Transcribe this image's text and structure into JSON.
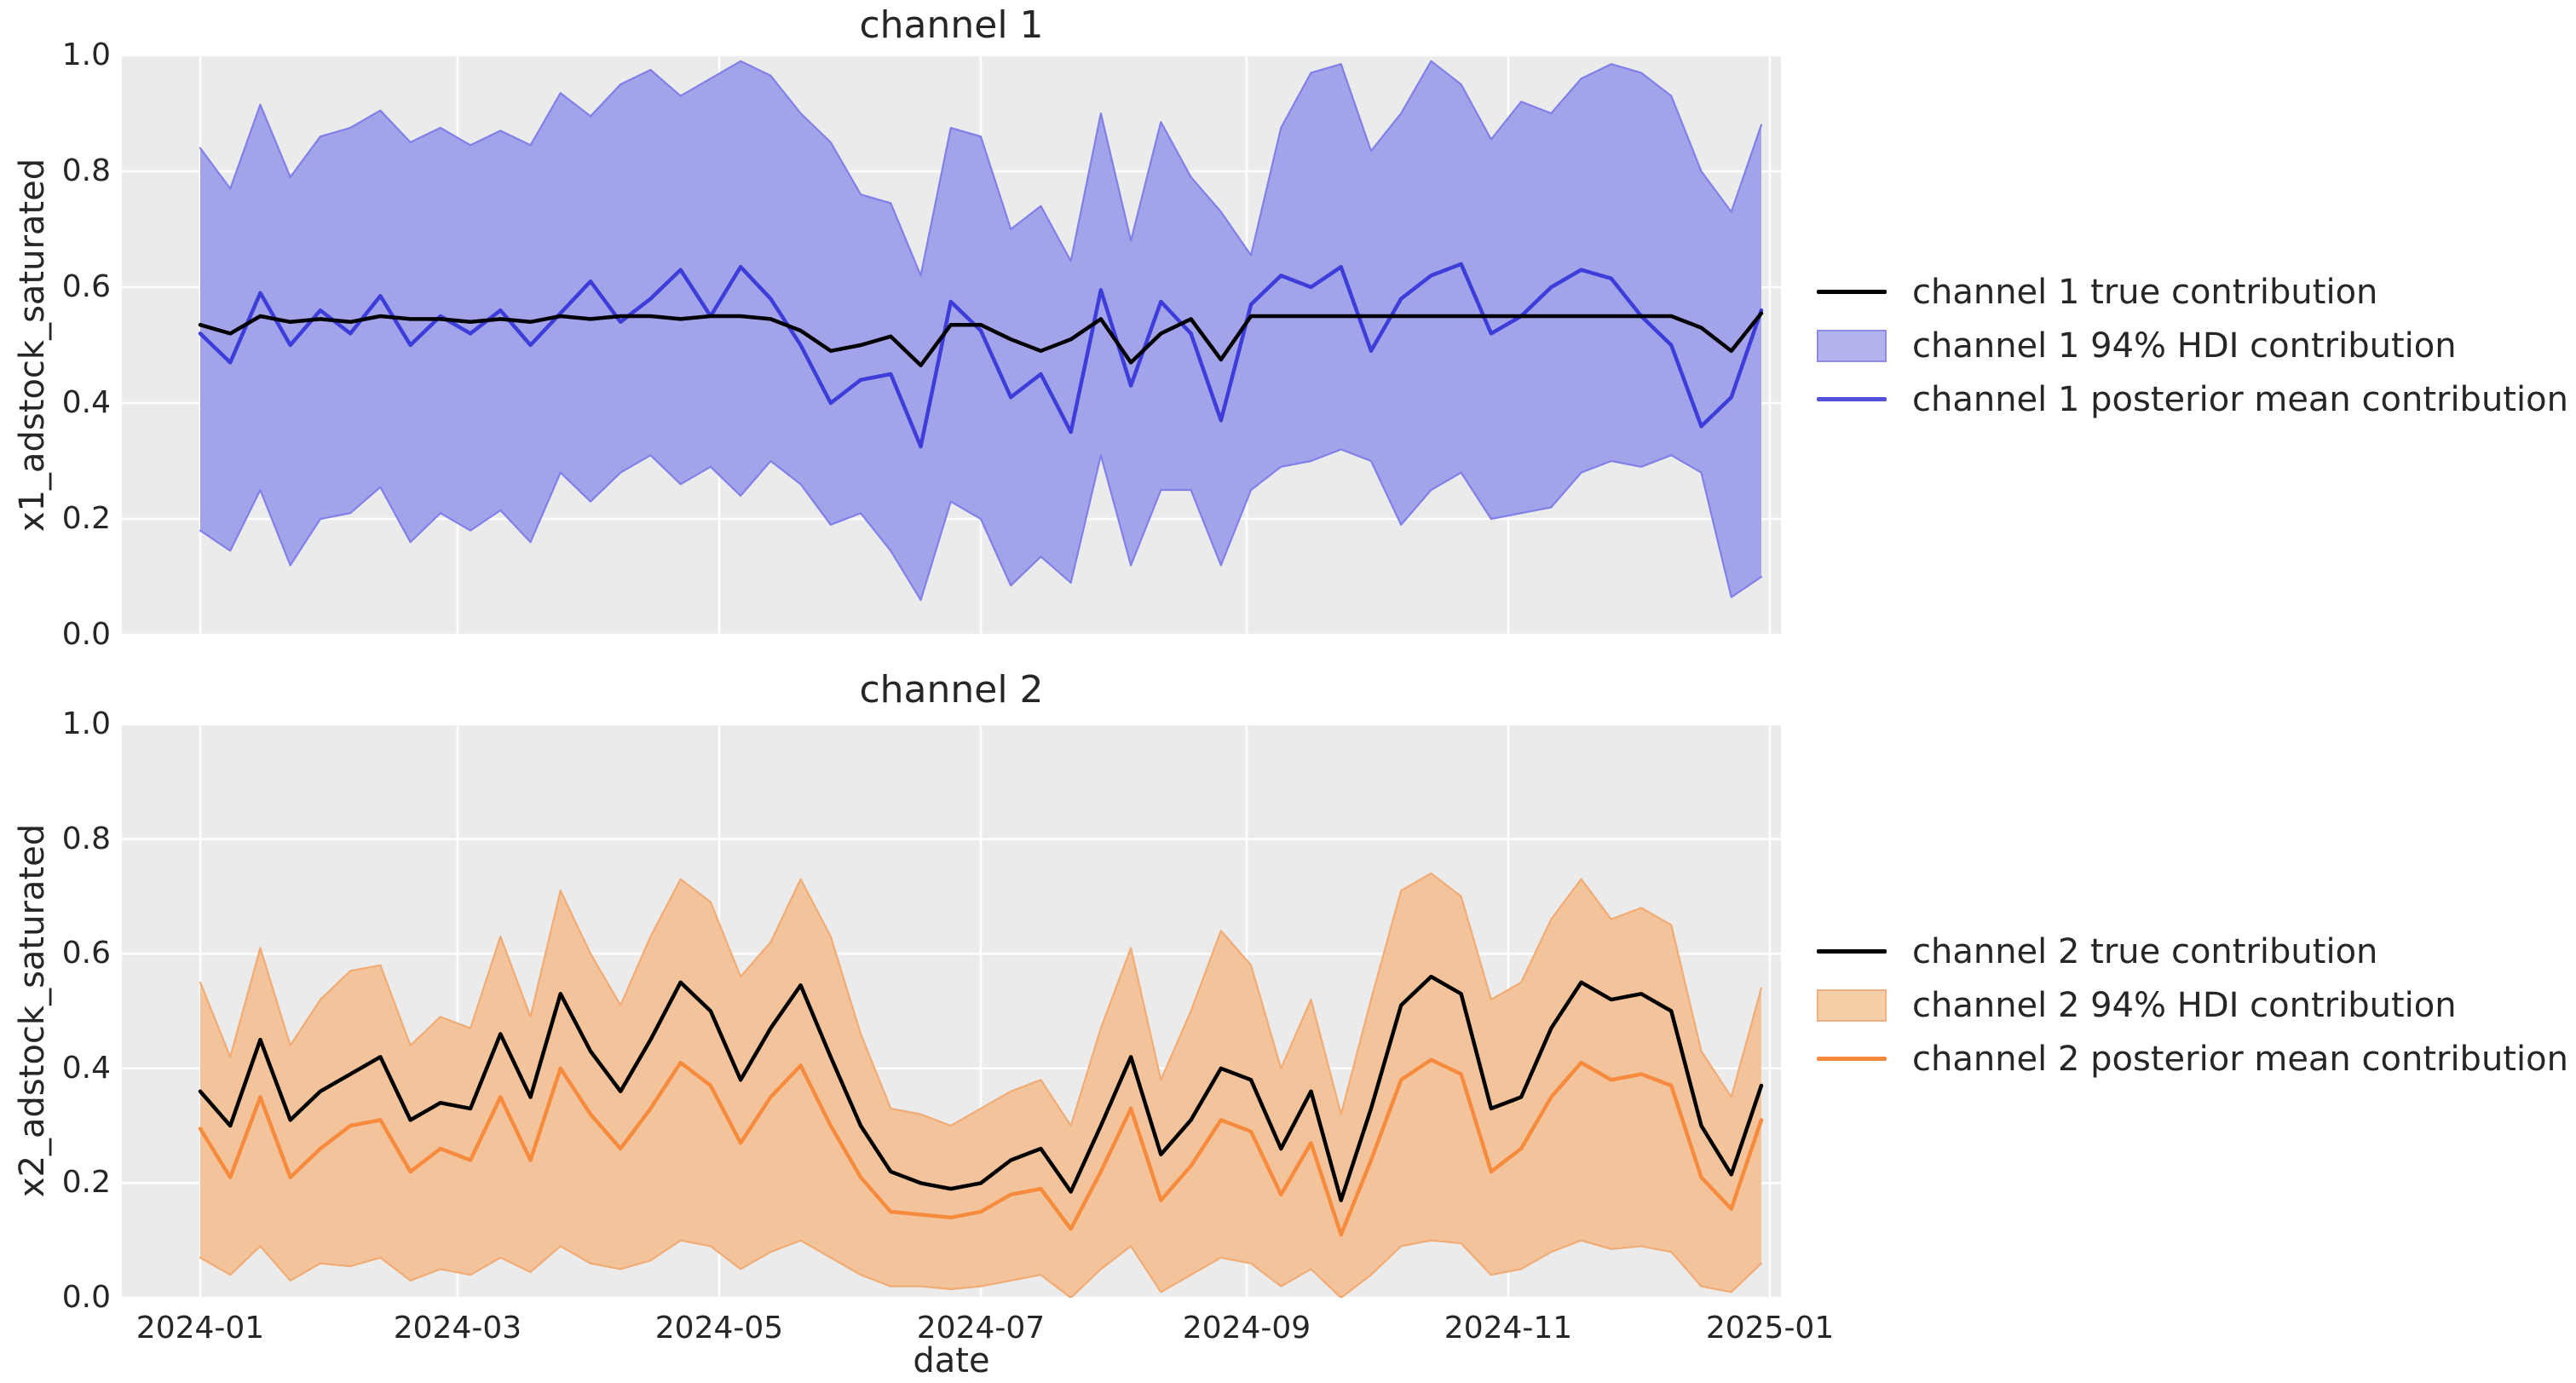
{
  "figure": {
    "background": "#ffffff",
    "axes_background": "#ebebeb",
    "grid_color": "#ffffff",
    "text_color": "#262626"
  },
  "chart_data": [
    {
      "type": "line",
      "title": "channel 1",
      "ylabel": "x1_adstock_saturated",
      "xlabel": "",
      "ylim": [
        0.0,
        1.0
      ],
      "y_ticks": [
        0.0,
        0.2,
        0.4,
        0.6,
        0.8,
        1.0
      ],
      "x_ticks": [
        {
          "label": "2024-01",
          "week": 0
        },
        {
          "label": "2024-03",
          "week": 8.571
        },
        {
          "label": "2024-05",
          "week": 17.286
        },
        {
          "label": "2024-07",
          "week": 26.0
        },
        {
          "label": "2024-09",
          "week": 34.857
        },
        {
          "label": "2024-11",
          "week": 43.571
        },
        {
          "label": "2025-01",
          "week": 52.286
        }
      ],
      "show_x_tick_labels": false,
      "grid": true,
      "legend_position": "center-right-outside",
      "x": [
        "2024-01-01",
        "2024-01-08",
        "2024-01-15",
        "2024-01-22",
        "2024-01-29",
        "2024-02-05",
        "2024-02-12",
        "2024-02-19",
        "2024-02-26",
        "2024-03-04",
        "2024-03-11",
        "2024-03-18",
        "2024-03-25",
        "2024-04-01",
        "2024-04-08",
        "2024-04-15",
        "2024-04-22",
        "2024-04-29",
        "2024-05-06",
        "2024-05-13",
        "2024-05-20",
        "2024-05-27",
        "2024-06-03",
        "2024-06-10",
        "2024-06-17",
        "2024-06-24",
        "2024-07-01",
        "2024-07-08",
        "2024-07-15",
        "2024-07-22",
        "2024-07-29",
        "2024-08-05",
        "2024-08-12",
        "2024-08-19",
        "2024-08-26",
        "2024-09-02",
        "2024-09-09",
        "2024-09-16",
        "2024-09-23",
        "2024-09-30",
        "2024-10-07",
        "2024-10-14",
        "2024-10-21",
        "2024-10-28",
        "2024-11-04",
        "2024-11-11",
        "2024-11-18",
        "2024-11-25",
        "2024-12-02",
        "2024-12-09",
        "2024-12-16",
        "2024-12-23",
        "2024-12-30"
      ],
      "series": [
        {
          "name": "channel 1 true contribution",
          "role": "true",
          "color": "#000000",
          "values": [
            0.535,
            0.52,
            0.55,
            0.54,
            0.545,
            0.54,
            0.55,
            0.545,
            0.545,
            0.54,
            0.545,
            0.54,
            0.55,
            0.545,
            0.55,
            0.55,
            0.545,
            0.55,
            0.55,
            0.545,
            0.525,
            0.49,
            0.5,
            0.515,
            0.465,
            0.535,
            0.535,
            0.51,
            0.49,
            0.51,
            0.545,
            0.47,
            0.52,
            0.545,
            0.475,
            0.55,
            0.55,
            0.55,
            0.55,
            0.55,
            0.55,
            0.55,
            0.55,
            0.55,
            0.55,
            0.55,
            0.55,
            0.55,
            0.55,
            0.55,
            0.53,
            0.49,
            0.555
          ]
        },
        {
          "name": "channel 1 posterior mean contribution",
          "role": "posterior_mean",
          "color": "#3d3dd9",
          "values": [
            0.52,
            0.47,
            0.59,
            0.5,
            0.56,
            0.52,
            0.585,
            0.5,
            0.55,
            0.52,
            0.56,
            0.5,
            0.555,
            0.61,
            0.54,
            0.58,
            0.63,
            0.55,
            0.635,
            0.58,
            0.5,
            0.4,
            0.44,
            0.45,
            0.325,
            0.575,
            0.525,
            0.41,
            0.45,
            0.35,
            0.595,
            0.43,
            0.575,
            0.52,
            0.37,
            0.57,
            0.62,
            0.6,
            0.635,
            0.49,
            0.58,
            0.62,
            0.64,
            0.52,
            0.55,
            0.6,
            0.63,
            0.615,
            0.55,
            0.5,
            0.36,
            0.41,
            0.56
          ]
        }
      ],
      "band": {
        "name": "channel 1 94% HDI contribution",
        "fill": "#a3a3e9",
        "edge": "#8080e8",
        "legend_fill": "#b3b3ef",
        "legend_edge": "#8c8ce8",
        "upper": [
          0.84,
          0.77,
          0.915,
          0.79,
          0.86,
          0.875,
          0.905,
          0.85,
          0.875,
          0.845,
          0.87,
          0.845,
          0.935,
          0.895,
          0.95,
          0.975,
          0.93,
          0.96,
          0.99,
          0.965,
          0.9,
          0.85,
          0.76,
          0.745,
          0.62,
          0.875,
          0.86,
          0.7,
          0.74,
          0.645,
          0.9,
          0.68,
          0.885,
          0.79,
          0.73,
          0.655,
          0.875,
          0.97,
          0.985,
          0.835,
          0.9,
          0.99,
          0.95,
          0.855,
          0.92,
          0.9,
          0.96,
          0.985,
          0.97,
          0.93,
          0.8,
          0.73,
          0.88
        ],
        "lower": [
          0.18,
          0.145,
          0.25,
          0.12,
          0.2,
          0.21,
          0.255,
          0.16,
          0.21,
          0.18,
          0.215,
          0.16,
          0.28,
          0.23,
          0.28,
          0.31,
          0.26,
          0.29,
          0.24,
          0.3,
          0.26,
          0.19,
          0.21,
          0.145,
          0.06,
          0.23,
          0.2,
          0.085,
          0.135,
          0.09,
          0.31,
          0.12,
          0.25,
          0.25,
          0.12,
          0.25,
          0.29,
          0.3,
          0.32,
          0.3,
          0.19,
          0.25,
          0.28,
          0.2,
          0.21,
          0.22,
          0.28,
          0.3,
          0.29,
          0.31,
          0.28,
          0.065,
          0.1
        ]
      },
      "legend": [
        {
          "label": "channel 1 true contribution",
          "swatch": "line",
          "color": "#000000"
        },
        {
          "label": "channel 1 94% HDI contribution",
          "swatch": "patch",
          "color": "#b3b3ef",
          "edge": "#8c8ce8"
        },
        {
          "label": "channel 1 posterior mean contribution",
          "swatch": "line",
          "color": "#5151dd"
        }
      ]
    },
    {
      "type": "line",
      "title": "channel 2",
      "ylabel": "x2_adstock_saturated",
      "xlabel": "date",
      "ylim": [
        0.0,
        1.0
      ],
      "y_ticks": [
        0.0,
        0.2,
        0.4,
        0.6,
        0.8,
        1.0
      ],
      "x_ticks": [
        {
          "label": "2024-01",
          "week": 0
        },
        {
          "label": "2024-03",
          "week": 8.571
        },
        {
          "label": "2024-05",
          "week": 17.286
        },
        {
          "label": "2024-07",
          "week": 26.0
        },
        {
          "label": "2024-09",
          "week": 34.857
        },
        {
          "label": "2024-11",
          "week": 43.571
        },
        {
          "label": "2025-01",
          "week": 52.286
        }
      ],
      "show_x_tick_labels": true,
      "grid": true,
      "legend_position": "center-right-outside",
      "x": [
        "2024-01-01",
        "2024-01-08",
        "2024-01-15",
        "2024-01-22",
        "2024-01-29",
        "2024-02-05",
        "2024-02-12",
        "2024-02-19",
        "2024-02-26",
        "2024-03-04",
        "2024-03-11",
        "2024-03-18",
        "2024-03-25",
        "2024-04-01",
        "2024-04-08",
        "2024-04-15",
        "2024-04-22",
        "2024-04-29",
        "2024-05-06",
        "2024-05-13",
        "2024-05-20",
        "2024-05-27",
        "2024-06-03",
        "2024-06-10",
        "2024-06-17",
        "2024-06-24",
        "2024-07-01",
        "2024-07-08",
        "2024-07-15",
        "2024-07-22",
        "2024-07-29",
        "2024-08-05",
        "2024-08-12",
        "2024-08-19",
        "2024-08-26",
        "2024-09-02",
        "2024-09-09",
        "2024-09-16",
        "2024-09-23",
        "2024-09-30",
        "2024-10-07",
        "2024-10-14",
        "2024-10-21",
        "2024-10-28",
        "2024-11-04",
        "2024-11-11",
        "2024-11-18",
        "2024-11-25",
        "2024-12-02",
        "2024-12-09",
        "2024-12-16",
        "2024-12-23",
        "2024-12-30"
      ],
      "series": [
        {
          "name": "channel 2 true contribution",
          "role": "true",
          "color": "#000000",
          "values": [
            0.36,
            0.3,
            0.45,
            0.31,
            0.36,
            0.39,
            0.42,
            0.31,
            0.34,
            0.33,
            0.46,
            0.35,
            0.53,
            0.43,
            0.36,
            0.45,
            0.55,
            0.5,
            0.38,
            0.47,
            0.545,
            0.42,
            0.3,
            0.22,
            0.2,
            0.19,
            0.2,
            0.24,
            0.26,
            0.185,
            0.3,
            0.42,
            0.25,
            0.31,
            0.4,
            0.38,
            0.26,
            0.36,
            0.17,
            0.33,
            0.51,
            0.56,
            0.53,
            0.33,
            0.35,
            0.47,
            0.55,
            0.52,
            0.53,
            0.5,
            0.3,
            0.215,
            0.37
          ]
        },
        {
          "name": "channel 2 posterior mean contribution",
          "role": "posterior_mean",
          "color": "#f78b3d",
          "values": [
            0.295,
            0.21,
            0.35,
            0.21,
            0.26,
            0.3,
            0.31,
            0.22,
            0.26,
            0.24,
            0.35,
            0.24,
            0.4,
            0.32,
            0.26,
            0.33,
            0.41,
            0.37,
            0.27,
            0.35,
            0.405,
            0.3,
            0.21,
            0.15,
            0.145,
            0.14,
            0.15,
            0.18,
            0.19,
            0.12,
            0.22,
            0.33,
            0.17,
            0.23,
            0.31,
            0.29,
            0.18,
            0.27,
            0.11,
            0.24,
            0.38,
            0.415,
            0.39,
            0.22,
            0.26,
            0.35,
            0.41,
            0.38,
            0.39,
            0.37,
            0.21,
            0.155,
            0.31
          ]
        }
      ],
      "band": {
        "name": "channel 2 94% HDI contribution",
        "fill": "#f3c49c",
        "edge": "#f1ab74",
        "legend_fill": "#f6cfa9",
        "legend_edge": "#f2b27e",
        "upper": [
          0.55,
          0.42,
          0.61,
          0.44,
          0.52,
          0.57,
          0.58,
          0.44,
          0.49,
          0.47,
          0.63,
          0.49,
          0.71,
          0.6,
          0.51,
          0.63,
          0.73,
          0.69,
          0.56,
          0.62,
          0.73,
          0.63,
          0.46,
          0.33,
          0.32,
          0.3,
          0.33,
          0.36,
          0.38,
          0.3,
          0.47,
          0.61,
          0.38,
          0.5,
          0.64,
          0.58,
          0.4,
          0.52,
          0.32,
          0.52,
          0.71,
          0.74,
          0.7,
          0.52,
          0.55,
          0.66,
          0.73,
          0.66,
          0.68,
          0.65,
          0.43,
          0.35,
          0.54
        ],
        "lower": [
          0.07,
          0.04,
          0.09,
          0.03,
          0.06,
          0.055,
          0.07,
          0.03,
          0.05,
          0.04,
          0.07,
          0.045,
          0.09,
          0.06,
          0.05,
          0.065,
          0.1,
          0.09,
          0.05,
          0.08,
          0.1,
          0.07,
          0.04,
          0.02,
          0.02,
          0.015,
          0.02,
          0.03,
          0.04,
          0.0,
          0.05,
          0.09,
          0.01,
          0.04,
          0.07,
          0.06,
          0.02,
          0.05,
          0.0,
          0.04,
          0.09,
          0.1,
          0.095,
          0.04,
          0.05,
          0.08,
          0.1,
          0.085,
          0.09,
          0.08,
          0.02,
          0.01,
          0.06
        ]
      },
      "legend": [
        {
          "label": "channel 2 true contribution",
          "swatch": "line",
          "color": "#000000"
        },
        {
          "label": "channel 2 94% HDI contribution",
          "swatch": "patch",
          "color": "#f6cfa9",
          "edge": "#f2b27e"
        },
        {
          "label": "channel 2 posterior mean contribution",
          "swatch": "line",
          "color": "#f78b3d"
        }
      ]
    }
  ]
}
